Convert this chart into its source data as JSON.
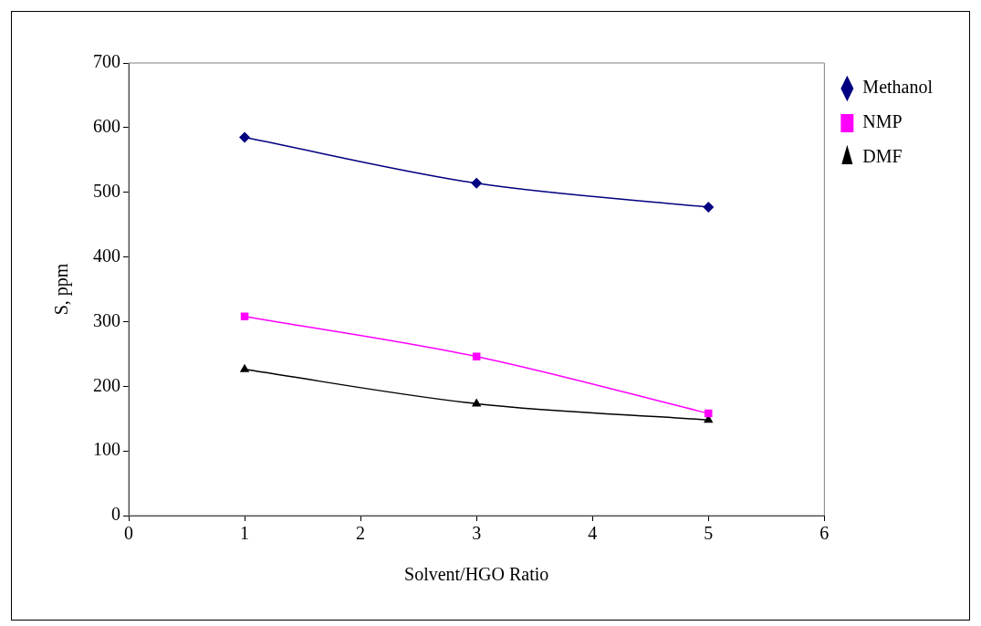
{
  "chart_data": {
    "type": "line",
    "xlabel": "Solvent/HGO Ratio",
    "ylabel": "S, ppm",
    "x": [
      1,
      3,
      5
    ],
    "series": [
      {
        "name": "Methanol",
        "color": "#000080",
        "marker": "diamond",
        "values": [
          585,
          514,
          477
        ]
      },
      {
        "name": "NMP",
        "color": "#ff00ff",
        "marker": "square",
        "values": [
          308,
          246,
          158
        ]
      },
      {
        "name": "DMF",
        "color": "#000000",
        "marker": "triangle",
        "values": [
          226,
          173,
          148
        ]
      }
    ],
    "xlim": [
      0,
      6
    ],
    "xticks": [
      0,
      1,
      2,
      3,
      4,
      5,
      6
    ],
    "ylim": [
      0,
      700
    ],
    "yticks": [
      0,
      100,
      200,
      300,
      400,
      500,
      600,
      700
    ],
    "grid": false,
    "legend": "right",
    "line_style": "solid"
  }
}
